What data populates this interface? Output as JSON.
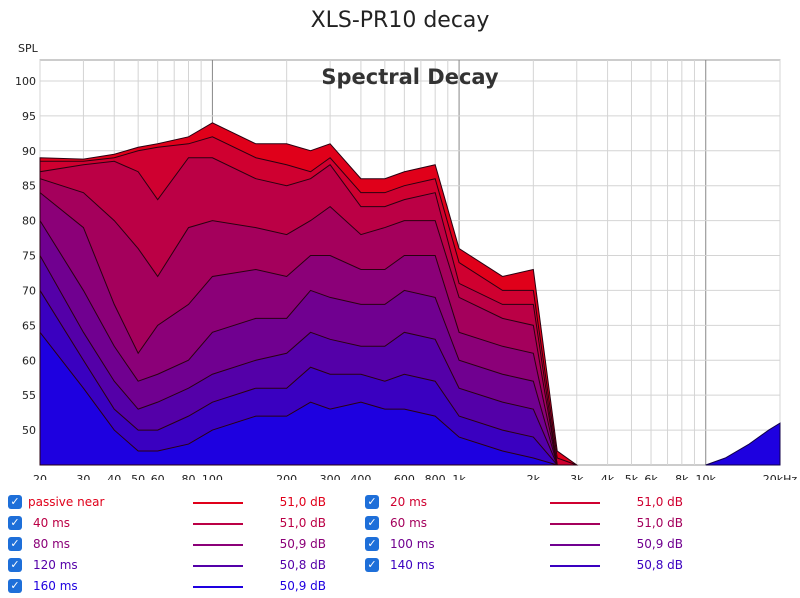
{
  "chart_data": {
    "type": "area",
    "title": "XLS-PR10 decay",
    "inner_title": "Spectral Decay",
    "ylabel": "SPL",
    "xlabel": "",
    "x_scale": "log",
    "xlim": [
      20,
      20000
    ],
    "ylim": [
      45,
      103
    ],
    "x_ticks": [
      20,
      30,
      40,
      50,
      60,
      80,
      100,
      200,
      300,
      400,
      600,
      800,
      1000,
      2000,
      3000,
      4000,
      5000,
      6000,
      8000,
      10000,
      20000
    ],
    "x_tick_labels": [
      "20",
      "30",
      "40",
      "50",
      "60",
      "80",
      "100",
      "200",
      "300",
      "400",
      "600",
      "800",
      "1k",
      "2k",
      "3k",
      "4k",
      "5k",
      "6k",
      "8k",
      "10k",
      "20kHz"
    ],
    "y_ticks": [
      50,
      55,
      60,
      65,
      70,
      75,
      80,
      85,
      90,
      95,
      100
    ],
    "y_tick_labels": [
      "50",
      "55",
      "60",
      "65",
      "70",
      "75",
      "80",
      "85",
      "90",
      "95",
      "100"
    ],
    "grid": true,
    "legend_position": "bottom",
    "series": [
      {
        "name": "passive near",
        "value_label": "51,0 dB",
        "color": "#e0001a",
        "x": [
          20,
          30,
          40,
          50,
          60,
          80,
          100,
          150,
          200,
          250,
          300,
          400,
          500,
          600,
          800,
          1000,
          1500,
          2000,
          2500,
          3000
        ],
        "y": [
          89,
          88.8,
          89.5,
          90.5,
          91,
          92,
          94,
          91,
          91,
          90,
          91,
          86,
          86,
          87,
          88,
          76,
          72,
          73,
          47,
          45
        ]
      },
      {
        "name": "20 ms",
        "value_label": "51,0 dB",
        "color": "#cf0030",
        "x": [
          20,
          30,
          40,
          50,
          60,
          80,
          100,
          150,
          200,
          250,
          300,
          400,
          500,
          600,
          800,
          1000,
          1500,
          2000,
          2500,
          3000
        ],
        "y": [
          88.5,
          88.5,
          89,
          90,
          90.5,
          91,
          92,
          89,
          88,
          87,
          89,
          84,
          84,
          85,
          86,
          74,
          70,
          70,
          46,
          45
        ]
      },
      {
        "name": "40 ms",
        "value_label": "51,0 dB",
        "color": "#bb0045",
        "x": [
          20,
          30,
          40,
          50,
          60,
          80,
          100,
          150,
          200,
          250,
          300,
          400,
          500,
          600,
          800,
          1000,
          1500,
          2000,
          2500,
          3000
        ],
        "y": [
          87,
          88,
          88.5,
          87,
          83,
          89,
          89,
          86,
          85,
          86,
          88,
          82,
          82,
          83,
          84,
          71,
          68,
          68,
          45,
          45
        ]
      },
      {
        "name": "60 ms",
        "value_label": "51,0 dB",
        "color": "#a4005c",
        "x": [
          20,
          30,
          40,
          50,
          60,
          80,
          100,
          150,
          200,
          250,
          300,
          400,
          500,
          600,
          800,
          1000,
          1500,
          2000,
          2500,
          3000
        ],
        "y": [
          86,
          84,
          80,
          76,
          72,
          79,
          80,
          79,
          78,
          80,
          82,
          78,
          79,
          80,
          80,
          69,
          66,
          65,
          45,
          45
        ]
      },
      {
        "name": "80 ms",
        "value_label": "50,9 dB",
        "color": "#8b0078",
        "x": [
          20,
          30,
          40,
          50,
          60,
          80,
          100,
          150,
          200,
          250,
          300,
          400,
          500,
          600,
          800,
          1000,
          1500,
          2000,
          2500,
          3000
        ],
        "y": [
          84,
          79,
          68,
          61,
          65,
          68,
          72,
          73,
          72,
          75,
          75,
          73,
          73,
          75,
          75,
          64,
          62,
          61,
          45,
          45
        ]
      },
      {
        "name": "100 ms",
        "value_label": "50,9 dB",
        "color": "#700090",
        "x": [
          20,
          30,
          40,
          50,
          60,
          80,
          100,
          150,
          200,
          250,
          300,
          400,
          500,
          600,
          800,
          1000,
          1500,
          2000,
          2500,
          3000
        ],
        "y": [
          80,
          70,
          62,
          57,
          58,
          60,
          64,
          66,
          66,
          70,
          69,
          68,
          68,
          70,
          69,
          60,
          58,
          57,
          45,
          45
        ]
      },
      {
        "name": "120 ms",
        "value_label": "50,8 dB",
        "color": "#5400a8",
        "x": [
          20,
          30,
          40,
          50,
          60,
          80,
          100,
          150,
          200,
          250,
          300,
          400,
          500,
          600,
          800,
          1000,
          1500,
          2000,
          2500,
          3000
        ],
        "y": [
          75,
          64,
          57,
          53,
          54,
          56,
          58,
          60,
          61,
          64,
          63,
          62,
          62,
          64,
          63,
          56,
          54,
          53,
          45,
          45
        ]
      },
      {
        "name": "140 ms",
        "value_label": "50,8 dB",
        "color": "#3a00c0",
        "x": [
          20,
          30,
          40,
          50,
          60,
          80,
          100,
          150,
          200,
          250,
          300,
          400,
          500,
          600,
          800,
          1000,
          1500,
          2000,
          2500,
          3000
        ],
        "y": [
          70,
          60,
          53,
          50,
          50,
          52,
          54,
          56,
          56,
          59,
          58,
          58,
          57,
          58,
          57,
          52,
          50,
          49,
          45,
          45
        ]
      },
      {
        "name": "160 ms",
        "value_label": "50,9 dB",
        "color": "#1e00e0",
        "x": [
          20,
          30,
          40,
          50,
          60,
          80,
          100,
          150,
          200,
          250,
          300,
          400,
          500,
          600,
          800,
          1000,
          1500,
          2000,
          2500,
          3000
        ],
        "y": [
          64,
          56,
          50,
          47,
          47,
          48,
          50,
          52,
          52,
          54,
          53,
          54,
          53,
          53,
          52,
          49,
          47,
          46,
          45,
          45
        ]
      }
    ],
    "tail": {
      "x": [
        10000,
        12000,
        15000,
        18000,
        20000
      ],
      "y": [
        45,
        46,
        48,
        50,
        51
      ]
    }
  },
  "legend": [
    {
      "label": "passive near",
      "value": "51,0 dB",
      "color": "#e0001a"
    },
    {
      "label": "20 ms",
      "value": "51,0 dB",
      "color": "#cf0030"
    },
    {
      "label": "40 ms",
      "value": "51,0 dB",
      "color": "#bb0045"
    },
    {
      "label": "60 ms",
      "value": "51,0 dB",
      "color": "#a4005c"
    },
    {
      "label": "80 ms",
      "value": "50,9 dB",
      "color": "#8b0078"
    },
    {
      "label": "100 ms",
      "value": "50,9 dB",
      "color": "#700090"
    },
    {
      "label": "120 ms",
      "value": "50,8 dB",
      "color": "#5400a8"
    },
    {
      "label": "140 ms",
      "value": "50,8 dB",
      "color": "#3a00c0"
    },
    {
      "label": "160 ms",
      "value": "50,9 dB",
      "color": "#1e00e0"
    }
  ]
}
